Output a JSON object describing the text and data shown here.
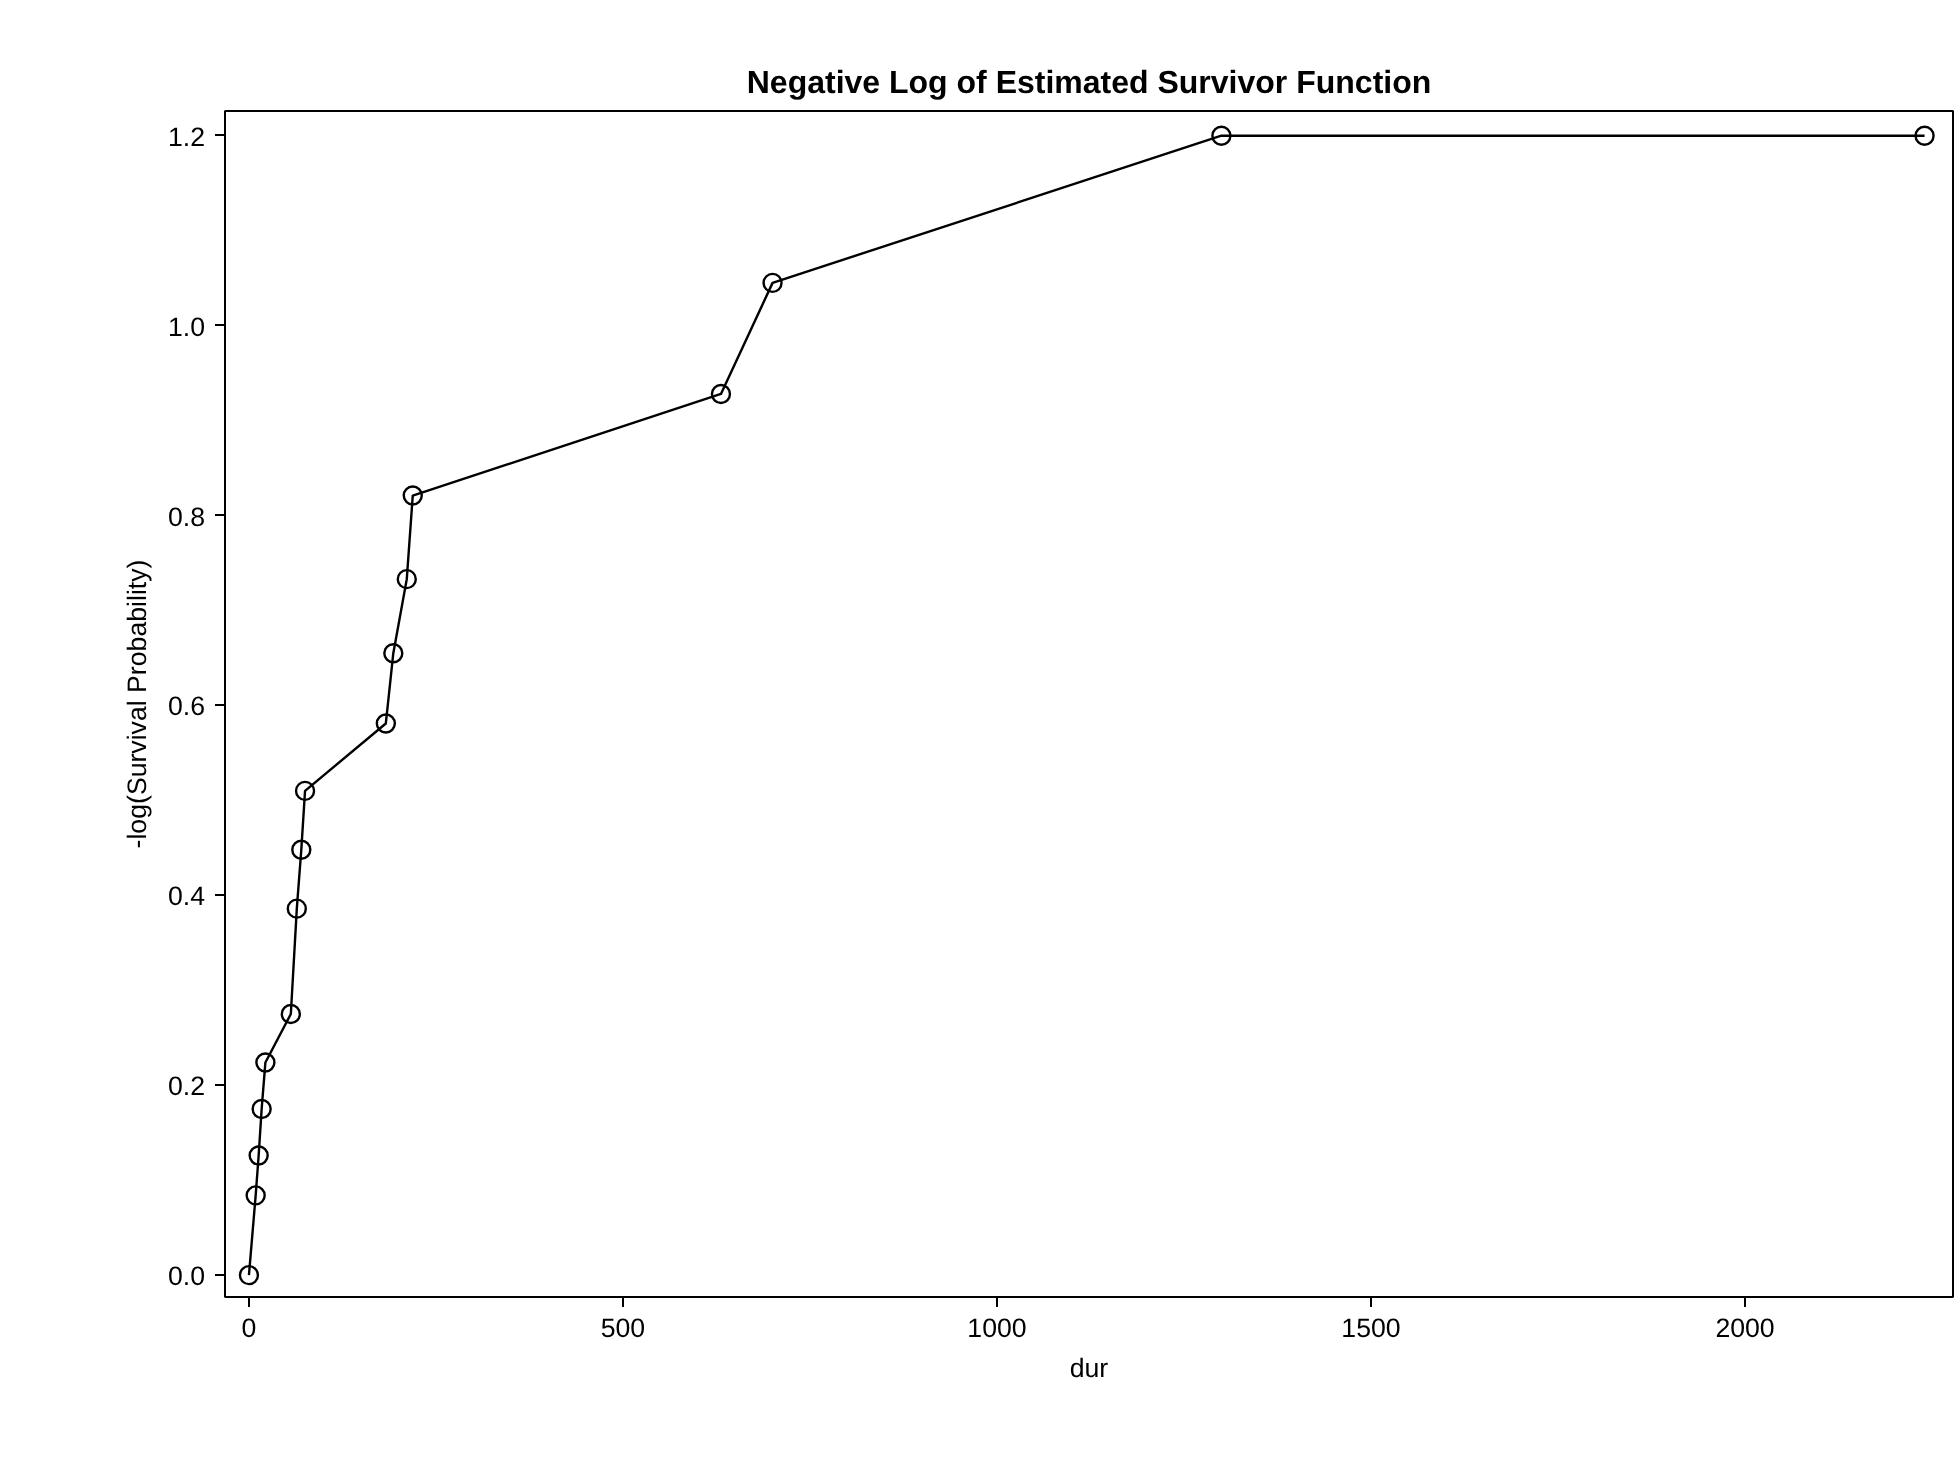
{
  "chart_data": {
    "type": "line",
    "title": "Negative Log of Estimated Survivor Function",
    "xlabel": "dur",
    "ylabel": "-log(Survival Probability)",
    "x": [
      0,
      9,
      13,
      17,
      22,
      56,
      64,
      70,
      75,
      183,
      193,
      211,
      219,
      631,
      700,
      1300,
      2240
    ],
    "series": [
      {
        "color": "#000000",
        "values": [
          0.0,
          0.084,
          0.126,
          0.175,
          0.224,
          0.275,
          0.386,
          0.448,
          0.51,
          0.581,
          0.655,
          0.733,
          0.821,
          0.928,
          1.045,
          1.2,
          1.2
        ]
      }
    ],
    "xlim": [
      -32,
      2278
    ],
    "ylim": [
      -0.023,
      1.226
    ],
    "xticks": [
      0,
      500,
      1000,
      1500,
      2000
    ],
    "yticks": [
      {
        "value": 0,
        "label": "0.0"
      },
      {
        "value": 0.2,
        "label": "0.2"
      },
      {
        "value": 0.4,
        "label": "0.4"
      },
      {
        "value": 0.6,
        "label": "0.6"
      },
      {
        "value": 0.8,
        "label": "0.8"
      },
      {
        "value": 1.0,
        "label": "1.0"
      },
      {
        "value": 1.2,
        "label": "1.2"
      }
    ],
    "marker": "circle",
    "line_style": "solid",
    "grid": false
  }
}
